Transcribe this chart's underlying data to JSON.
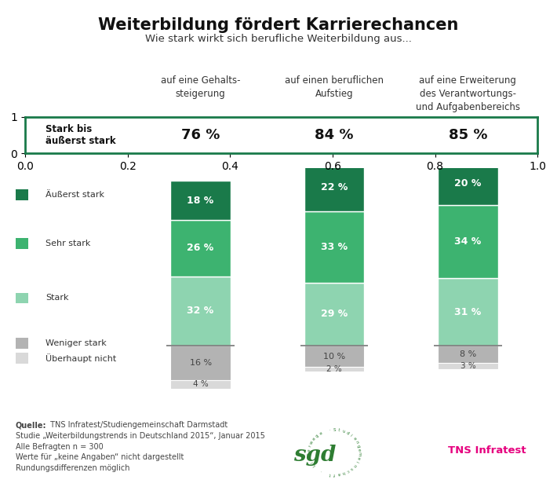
{
  "title": "Weiterbildung fördert Karrierechancen",
  "subtitle": "Wie stark wirkt sich berufliche Weiterbildung aus...",
  "col_headers": [
    "auf eine Gehalts-\nsteigerung",
    "auf einen beruflichen\nAufstieg",
    "auf eine Erweiterung\ndes Verantwortungs-\nund Aufgabenbereichs"
  ],
  "summary_label": "Stark bis\näußerst stark",
  "summary_values": [
    "76 %",
    "84 %",
    "85 %"
  ],
  "categories": [
    "Äußerst stark",
    "Sehr stark",
    "Stark",
    "Weniger stark",
    "Überhaupt nicht"
  ],
  "values": [
    [
      18,
      26,
      32,
      16,
      4
    ],
    [
      22,
      33,
      29,
      10,
      2
    ],
    [
      20,
      34,
      31,
      8,
      3
    ]
  ],
  "colors": [
    "#1a7a4a",
    "#3db370",
    "#8ed4b0",
    "#b3b3b3",
    "#d9d9d9"
  ],
  "bar_width": 0.45,
  "background_color": "#ffffff",
  "source_bold": "Quelle:",
  "source_rest": " TNS Infratest/Studiengemeinschaft Darmstadt",
  "source_lines": [
    "Studie „Weiterbildungstrends in Deutschland 2015“, Januar 2015",
    "Alle Befragten n = 300",
    "Werte für „keine Angaben“ nicht dargestellt",
    "Rundungsdifferenzen möglich"
  ],
  "tns_color": "#e6007e",
  "sgd_color": "#2e7d32",
  "border_color": "#1a7a4a"
}
